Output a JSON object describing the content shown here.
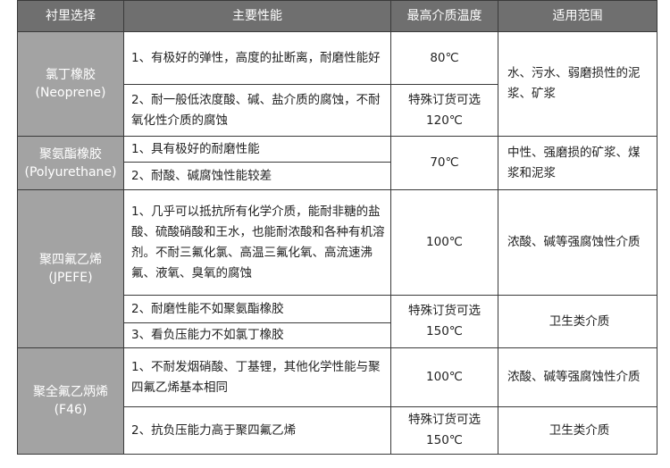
{
  "headers": [
    "衬里选择",
    "主要性能",
    "最高介质温度",
    "适用范围"
  ],
  "rows": {
    "neoprene": {
      "name": "氯丁橡胶",
      "code": "(Neoprene)",
      "perf1": "1、有极好的弹性，高度的扯断离，耐磨性能好",
      "temp1": "80℃",
      "perf2": "2、耐一般低浓度酸、碱、盐介质的腐蚀，不耐氧化性介质的腐蚀",
      "temp2_a": "特殊订货可选",
      "temp2_b": "120℃",
      "scope": "水、污水、弱磨损性的泥浆、矿浆"
    },
    "polyurethane": {
      "name": "聚氨酯橡胶",
      "code": "(Polyurethane)",
      "perf1": "1、具有极好的耐磨性能",
      "perf2": "2、耐酸、碱腐蚀性能较差",
      "temp": "70℃",
      "scope": "中性、强磨损的矿浆、煤浆和泥浆"
    },
    "ptfe": {
      "name": "聚四氟乙烯",
      "code": "(JPEFE)",
      "perf1": "1、几乎可以抵抗所有化学介质，能耐非糖的盐酸、硫酸硝酸和王水，也能耐浓酸和各种有机溶剂。不耐三氟化氯、高温三氟化氧、高流速沸氟、液氧、臭氧的腐蚀",
      "temp1": "100℃",
      "scope1": "浓酸、碱等强腐蚀性介质",
      "perf2": "2、耐磨性能不如聚氨酯橡胶",
      "perf3": "3、看负压能力不如氯丁橡胶",
      "temp2_a": "特殊订货可选",
      "temp2_b": "150℃",
      "scope2": "卫生类介质"
    },
    "f46": {
      "name": "聚全氟乙炳烯",
      "code": "(F46)",
      "perf1": "1、不耐发烟硝酸、丁基锂，其他化学性能与聚四氟乙烯基本相同",
      "temp1": "100℃",
      "scope1": "浓酸、碱等强腐蚀性介质",
      "perf2": "2、抗负压能力高于聚四氟乙烯",
      "temp2_a": "特殊订货可选",
      "temp2_b": "150℃",
      "scope2": "卫生类介质"
    }
  },
  "colors": {
    "header_bg": "#6f6f6f",
    "material_bg": "#a3a3a3",
    "border": "#3a3a3a"
  }
}
